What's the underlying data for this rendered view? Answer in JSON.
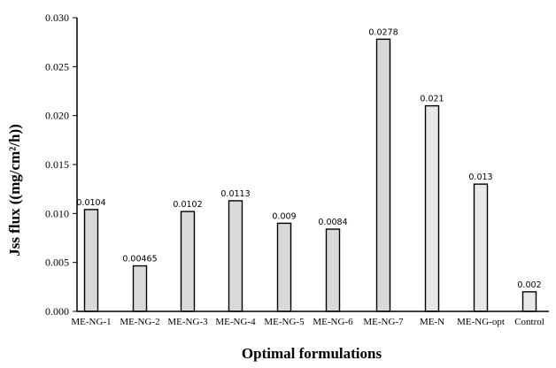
{
  "chart_data": {
    "type": "bar",
    "xlabel": "Optimal formulations",
    "ylabel": "Jss flux ((mg/cm²/h))",
    "ylim": [
      0,
      0.03
    ],
    "yticks": [
      "0.000",
      "0.005",
      "0.010",
      "0.015",
      "0.020",
      "0.025",
      "0.030"
    ],
    "grid": false,
    "categories": [
      "ME-NG-1",
      "ME-NG-2",
      "ME-NG-3",
      "ME-NG-4",
      "ME-NG-5",
      "ME-NG-6",
      "ME-NG-7",
      "ME-N",
      "ME-NG-opt",
      "Control"
    ],
    "values": [
      0.0104,
      0.00465,
      0.0102,
      0.0113,
      0.009,
      0.0084,
      0.0278,
      0.021,
      0.013,
      0.002
    ],
    "value_labels": [
      "0.0104",
      "0.00465",
      "0.0102",
      "0.0113",
      "0.009",
      "0.0084",
      "0.0278",
      "0.021",
      "0.013",
      "0.002"
    ],
    "colors": {
      "bar_fill": "#d9d9d9",
      "bar_fill_light": "#e8e8e8",
      "bar_stroke": "#000000",
      "axis": "#000000"
    }
  }
}
